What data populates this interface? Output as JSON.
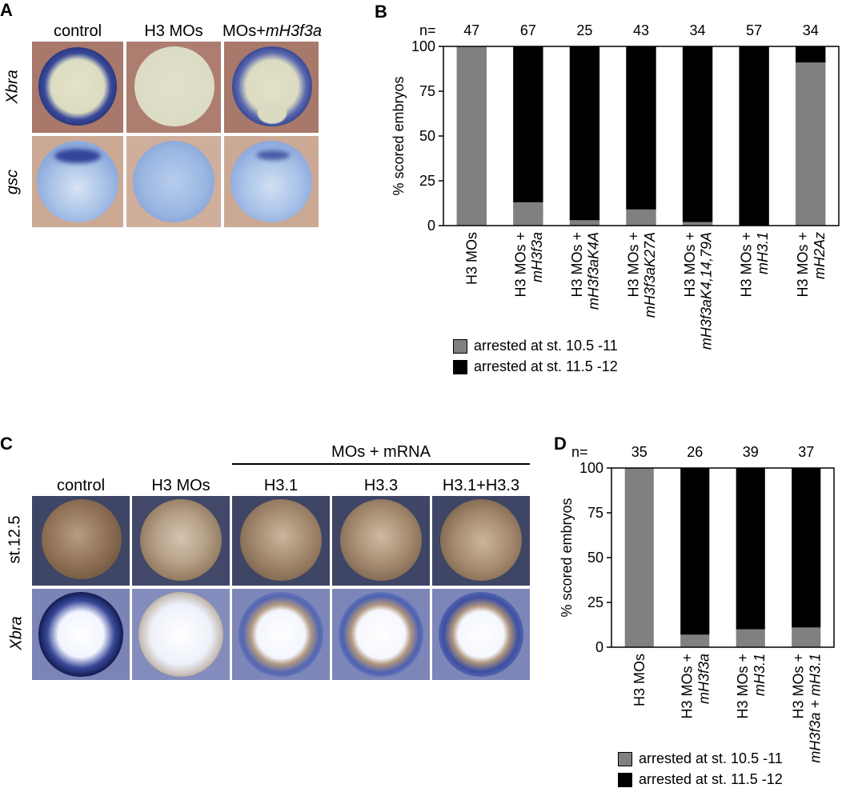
{
  "panels": {
    "A": {
      "label": "A",
      "columns": [
        "control",
        "H3 MOs",
        "MOs+"
      ],
      "column3_italic": "mH3f3a",
      "rows": [
        "Xbra",
        "gsc"
      ],
      "colors": {
        "bg_top": "#a8786a",
        "bg_bottom": "#c9a793",
        "embryo_light": "#dfe0c6",
        "stain": "#2e3c8e",
        "embryo_blue": "#8fb0dc"
      }
    },
    "C": {
      "label": "C",
      "group_label": "MOs + mRNA",
      "columns": [
        "control",
        "H3 MOs",
        "H3.1",
        "H3.3",
        "H3.1+H3.3"
      ],
      "rows": [
        "st.12.5",
        "Xbra"
      ],
      "colors": {
        "bg": "#3f4668",
        "embryo_brown": "#8c6e52",
        "stain": "#1c2c70",
        "center": "#f4f6ff",
        "bg_bottom": "#7d86b8"
      }
    }
  },
  "chart_data": [
    {
      "panel_label": "B",
      "type": "bar",
      "stacked": true,
      "n_prefix": "n=",
      "n_values": [
        "47",
        "67",
        "25",
        "43",
        "34",
        "57",
        "34"
      ],
      "categories": [
        {
          "line1": "H3 MOs",
          "line2": ""
        },
        {
          "line1": "H3 MOs +",
          "line2": "mH3f3a"
        },
        {
          "line1": "H3 MOs +",
          "line2": "mH3f3aK4A"
        },
        {
          "line1": "H3 MOs +",
          "line2": "mH3f3aK27A"
        },
        {
          "line1": "H3 MOs +",
          "line2": "mH3f3aK4,14,79A"
        },
        {
          "line1": "H3 MOs +",
          "line2": "mH3.1"
        },
        {
          "line1": "H3 MOs +",
          "line2": "mH2Az"
        }
      ],
      "series": [
        {
          "name": "arrested at st. 10.5 -11",
          "color": "#808080",
          "values": [
            100,
            13,
            3,
            9,
            2,
            0,
            91
          ]
        },
        {
          "name": "arrested at st. 11.5 -12",
          "color": "#000000",
          "values": [
            0,
            87,
            97,
            91,
            98,
            100,
            9
          ]
        }
      ],
      "ylabel": "% scored embryos",
      "ylim": [
        0,
        100
      ],
      "yticks": [
        "0",
        "25",
        "50",
        "75",
        "100"
      ],
      "grid": false,
      "legend_position": "bottom"
    },
    {
      "panel_label": "D",
      "type": "bar",
      "stacked": true,
      "n_prefix": "n=",
      "n_values": [
        "35",
        "26",
        "39",
        "37"
      ],
      "categories": [
        {
          "line1": "H3 MOs",
          "line2": ""
        },
        {
          "line1": "H3 MOs +",
          "line2": "mH3f3a"
        },
        {
          "line1": "H3 MOs +",
          "line2": "mH3.1"
        },
        {
          "line1": "H3 MOs +",
          "line2": "mH3f3a + mH3.1"
        }
      ],
      "series": [
        {
          "name": "arrested at st. 10.5 -11",
          "color": "#808080",
          "values": [
            100,
            7,
            10,
            11
          ]
        },
        {
          "name": "arrested at st. 11.5 -12",
          "color": "#000000",
          "values": [
            0,
            93,
            90,
            89
          ]
        }
      ],
      "ylabel": "% scored embryos",
      "ylim": [
        0,
        100
      ],
      "yticks": [
        "0",
        "25",
        "50",
        "75",
        "100"
      ],
      "grid": false,
      "legend_position": "bottom"
    }
  ]
}
